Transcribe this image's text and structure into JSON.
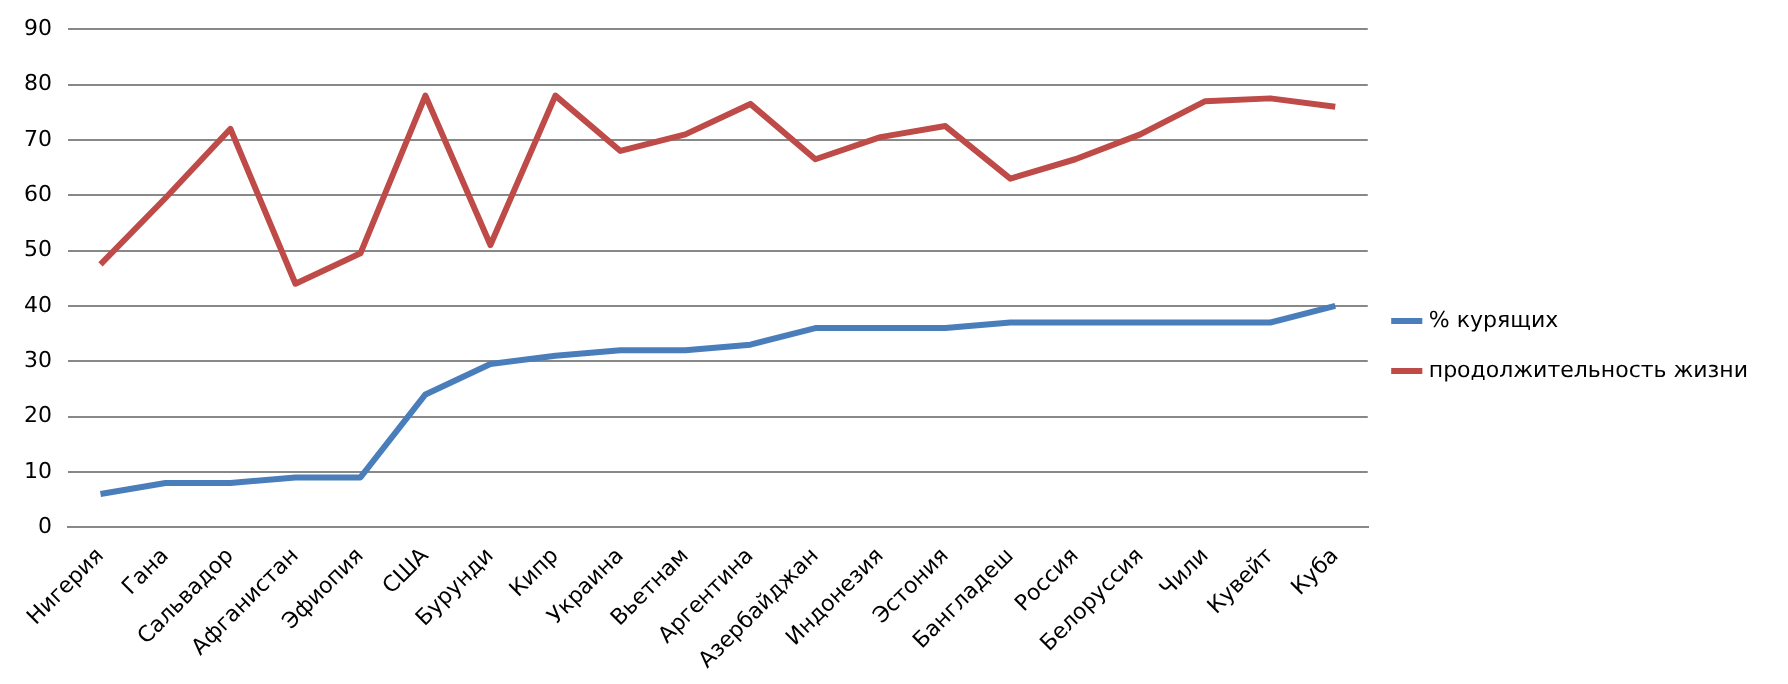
{
  "chart_data": {
    "type": "line",
    "categories": [
      "Нигерия",
      "Гана",
      "Сальвадор",
      "Афганистан",
      "Эфиопия",
      "США",
      "Бурунди",
      "Кипр",
      "Украина",
      "Вьетнам",
      "Аргентина",
      "Азербайджан",
      "Индонезия",
      "Эстония",
      "Бангладеш",
      "Россия",
      "Белоруссия",
      "Чили",
      "Кувейт",
      "Куба"
    ],
    "series": [
      {
        "name": "% курящих",
        "color": "#4a7ebb",
        "values": [
          6,
          8,
          8,
          9,
          9,
          24,
          29.5,
          31,
          32,
          32,
          33,
          36,
          36,
          36,
          37,
          37,
          37,
          37,
          37,
          40
        ]
      },
      {
        "name": "продолжительность жизни",
        "color": "#be4b48",
        "values": [
          47.5,
          59.5,
          72,
          44,
          49.5,
          78,
          51,
          78,
          68,
          71,
          76.5,
          66.5,
          70.5,
          72.5,
          63,
          66.5,
          71,
          77,
          77.5,
          76
        ]
      }
    ],
    "ylim": [
      0,
      90
    ],
    "yticks": [
      0,
      10,
      20,
      30,
      40,
      50,
      60,
      70,
      80,
      90
    ],
    "grid": "y",
    "legend": "right",
    "marker": "none",
    "line_style": "solid"
  }
}
